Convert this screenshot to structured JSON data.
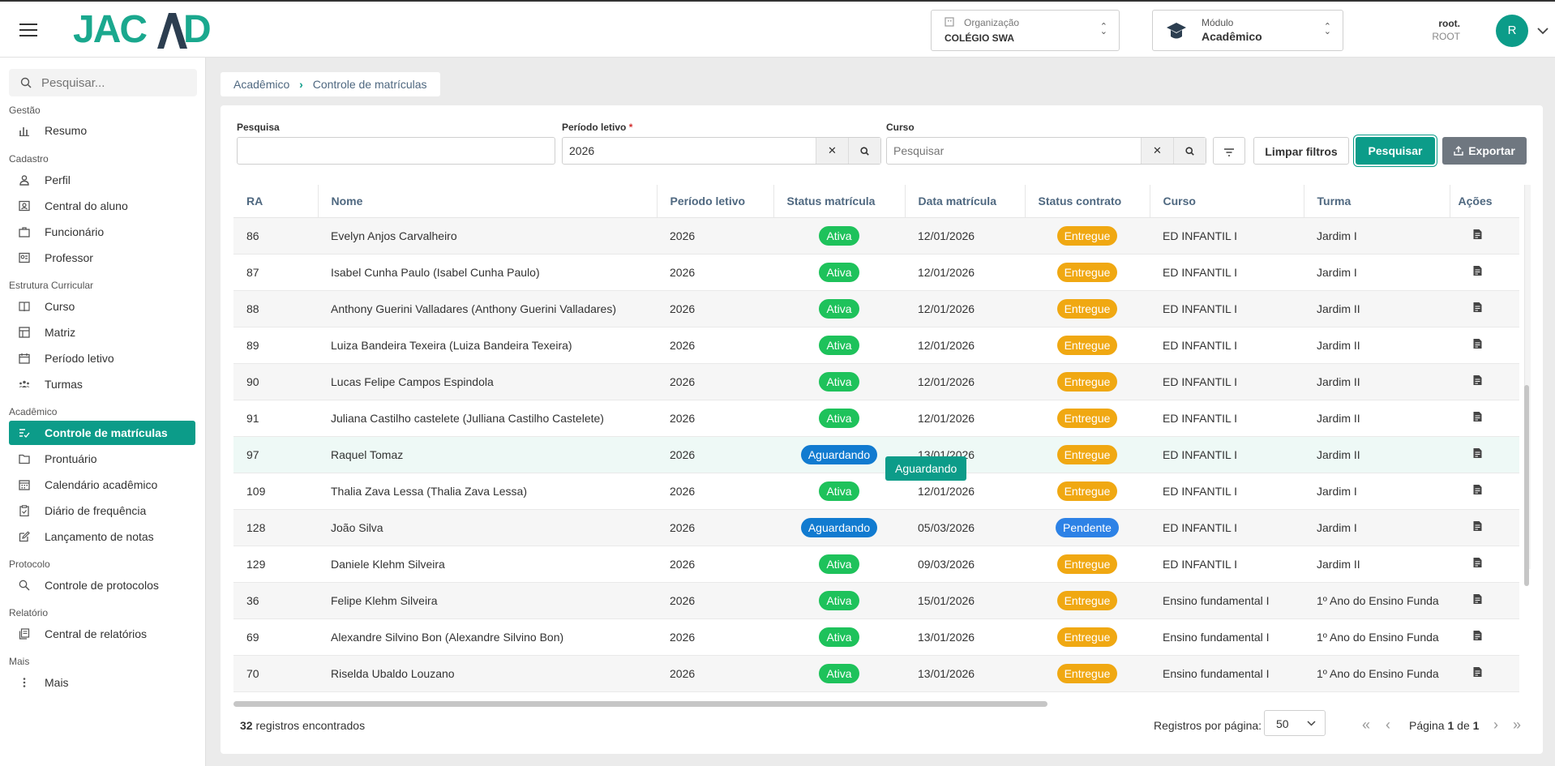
{
  "header": {
    "logo": "JACAD",
    "org_label": "Organização",
    "org_value": "COLÉGIO SWA",
    "module_label": "Módulo",
    "module_value": "Acadêmico",
    "user_name": "root.",
    "user_role": "ROOT",
    "avatar_letter": "R"
  },
  "sidebar": {
    "search_placeholder": "Pesquisar...",
    "sections": [
      {
        "title": "Gestão",
        "items": [
          {
            "label": "Resumo",
            "icon": "bar-chart-icon"
          }
        ]
      },
      {
        "title": "Cadastro",
        "items": [
          {
            "label": "Perfil",
            "icon": "person-icon"
          },
          {
            "label": "Central do aluno",
            "icon": "student-card-icon"
          },
          {
            "label": "Funcionário",
            "icon": "briefcase-icon"
          },
          {
            "label": "Professor",
            "icon": "teacher-icon"
          }
        ]
      },
      {
        "title": "Estrutura Curricular",
        "items": [
          {
            "label": "Curso",
            "icon": "book-icon"
          },
          {
            "label": "Matriz",
            "icon": "grid-icon"
          },
          {
            "label": "Período letivo",
            "icon": "calendar-icon"
          },
          {
            "label": "Turmas",
            "icon": "group-icon"
          }
        ]
      },
      {
        "title": "Acadêmico",
        "items": [
          {
            "label": "Controle de matrículas",
            "icon": "list-check-icon"
          },
          {
            "label": "Prontuário",
            "icon": "folder-icon"
          },
          {
            "label": "Calendário acadêmico",
            "icon": "calendar-grid-icon"
          },
          {
            "label": "Diário de frequência",
            "icon": "clipboard-icon"
          },
          {
            "label": "Lançamento de notas",
            "icon": "edit-icon"
          }
        ]
      },
      {
        "title": "Protocolo",
        "items": [
          {
            "label": "Controle de protocolos",
            "icon": "protocol-icon"
          }
        ]
      },
      {
        "title": "Relatório",
        "items": [
          {
            "label": "Central de relatórios",
            "icon": "report-icon"
          }
        ]
      },
      {
        "title": "Mais",
        "items": [
          {
            "label": "Mais",
            "icon": "more-vertical-icon"
          }
        ]
      }
    ]
  },
  "breadcrumb": {
    "root": "Acadêmico",
    "current": "Controle de matrículas"
  },
  "filters": {
    "pesquisa_label": "Pesquisa",
    "pesquisa_value": "",
    "periodo_label": "Período letivo",
    "periodo_required": "*",
    "periodo_value": "2026",
    "curso_label": "Curso",
    "curso_placeholder": "Pesquisar",
    "clear_label": "Limpar filtros",
    "search_label": "Pesquisar",
    "export_label": "Exportar"
  },
  "table": {
    "headers": [
      "RA",
      "Nome",
      "Período letivo",
      "Status matrícula",
      "Data matrícula",
      "Status contrato",
      "Curso",
      "Turma",
      "Ações"
    ],
    "rows": [
      {
        "ra": "86",
        "nome": "Evelyn Anjos Carvalheiro",
        "periodo": "2026",
        "status": "Ativa",
        "data": "12/01/2026",
        "contrato": "Entregue",
        "curso": "ED INFANTIL I",
        "turma": "Jardim I"
      },
      {
        "ra": "87",
        "nome": "Isabel Cunha Paulo (Isabel Cunha Paulo)",
        "periodo": "2026",
        "status": "Ativa",
        "data": "12/01/2026",
        "contrato": "Entregue",
        "curso": "ED INFANTIL I",
        "turma": "Jardim I"
      },
      {
        "ra": "88",
        "nome": "Anthony Guerini Valladares (Anthony Guerini Valladares)",
        "periodo": "2026",
        "status": "Ativa",
        "data": "12/01/2026",
        "contrato": "Entregue",
        "curso": "ED INFANTIL I",
        "turma": "Jardim II"
      },
      {
        "ra": "89",
        "nome": "Luiza Bandeira Texeira (Luiza Bandeira Texeira)",
        "periodo": "2026",
        "status": "Ativa",
        "data": "12/01/2026",
        "contrato": "Entregue",
        "curso": "ED INFANTIL I",
        "turma": "Jardim II"
      },
      {
        "ra": "90",
        "nome": "Lucas Felipe Campos Espindola",
        "periodo": "2026",
        "status": "Ativa",
        "data": "12/01/2026",
        "contrato": "Entregue",
        "curso": "ED INFANTIL I",
        "turma": "Jardim II"
      },
      {
        "ra": "91",
        "nome": "Juliana Castilho castelete (Julliana Castilho Castelete)",
        "periodo": "2026",
        "status": "Ativa",
        "data": "12/01/2026",
        "contrato": "Entregue",
        "curso": "ED INFANTIL I",
        "turma": "Jardim II"
      },
      {
        "ra": "97",
        "nome": "Raquel Tomaz",
        "periodo": "2026",
        "status": "Aguardando",
        "data": "13/01/2026",
        "contrato": "Entregue",
        "curso": "ED INFANTIL I",
        "turma": "Jardim II"
      },
      {
        "ra": "109",
        "nome": "Thalia Zava Lessa (Thalia Zava Lessa)",
        "periodo": "2026",
        "status": "Ativa",
        "data": "12/01/2026",
        "contrato": "Entregue",
        "curso": "ED INFANTIL I",
        "turma": "Jardim I"
      },
      {
        "ra": "128",
        "nome": "João Silva",
        "periodo": "2026",
        "status": "Aguardando",
        "data": "05/03/2026",
        "contrato": "Pendente",
        "curso": "ED INFANTIL I",
        "turma": "Jardim I"
      },
      {
        "ra": "129",
        "nome": "Daniele Klehm Silveira",
        "periodo": "2026",
        "status": "Ativa",
        "data": "09/03/2026",
        "contrato": "Entregue",
        "curso": "ED INFANTIL I",
        "turma": "Jardim II"
      },
      {
        "ra": "36",
        "nome": "Felipe Klehm Silveira",
        "periodo": "2026",
        "status": "Ativa",
        "data": "15/01/2026",
        "contrato": "Entregue",
        "curso": "Ensino fundamental I",
        "turma": "1º Ano do Ensino Funda"
      },
      {
        "ra": "69",
        "nome": "Alexandre Silvino Bon (Alexandre Silvino Bon)",
        "periodo": "2026",
        "status": "Ativa",
        "data": "13/01/2026",
        "contrato": "Entregue",
        "curso": "Ensino fundamental I",
        "turma": "1º Ano do Ensino Funda"
      },
      {
        "ra": "70",
        "nome": "Riselda Ubaldo Louzano",
        "periodo": "2026",
        "status": "Ativa",
        "data": "13/01/2026",
        "contrato": "Entregue",
        "curso": "Ensino fundamental I",
        "turma": "1º Ano do Ensino Funda"
      }
    ]
  },
  "tooltip": "Aguardando",
  "footer": {
    "count": "32",
    "count_suffix": "registros encontrados",
    "per_page_label": "Registros por página:",
    "per_page_value": "50",
    "page_prefix": "Página",
    "page_current": "1",
    "page_of": "de",
    "page_total": "1"
  },
  "colors": {
    "accent": "#0c9c89",
    "active_pill": "#1ec25b",
    "waiting_pill": "#117bd0",
    "delivered_pill": "#f0a812",
    "pending_pill": "#2d82e6"
  }
}
